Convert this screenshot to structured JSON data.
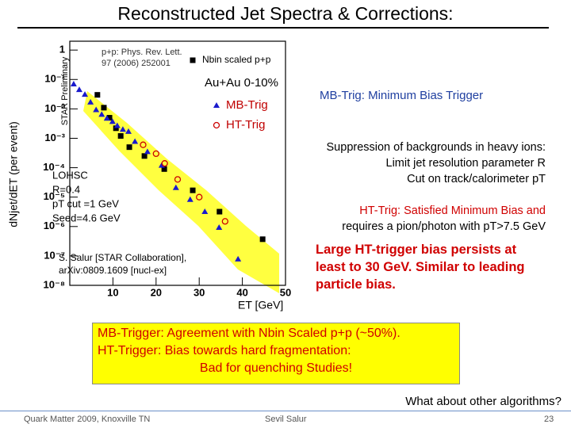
{
  "title": "Reconstructed Jet Spectra & Corrections:",
  "chart_data": {
    "type": "scatter",
    "y_label": "dNjet/dET (per event)",
    "x_label": "ET [GeV]",
    "log_y": true,
    "xlim": [
      0,
      50
    ],
    "xticks": [
      10,
      20,
      30,
      40,
      50
    ],
    "ylim": [
      1e-08,
      2
    ],
    "yticks": [
      {
        "value": 1,
        "label": "1"
      },
      {
        "value": 0.1,
        "label": "10⁻¹"
      },
      {
        "value": 0.01,
        "label": "10⁻²"
      },
      {
        "value": 0.001,
        "label": "10⁻³"
      },
      {
        "value": 0.0001,
        "label": "10⁻⁴"
      },
      {
        "value": 1e-05,
        "label": "10⁻⁵"
      },
      {
        "value": 1e-06,
        "label": "10⁻⁶"
      },
      {
        "value": 1e-07,
        "label": "10⁻⁷"
      },
      {
        "value": 1e-08,
        "label": "10⁻⁸"
      }
    ],
    "annotations": {
      "preliminary": "STAR Preliminary",
      "reference": [
        "p+p: Phys. Rev. Lett.",
        "97 (2006) 252001"
      ],
      "system": "Au+Au 0-10%",
      "algorithm": [
        "LOHSC",
        "R=0.4",
        "pT cut =1 GeV",
        "Seed=4.6 GeV"
      ],
      "citation": [
        "S. Salur [STAR Collaboration],",
        "arXiv:0809.1609 [nucl-ex]"
      ]
    },
    "series": [
      {
        "name": "Nbin scaled p+p",
        "color": "#000000",
        "marker": "square",
        "x": [
          6.4,
          7.9,
          9.2,
          10.7,
          11.8,
          13.8,
          17.3,
          21.9,
          28.5,
          34.7,
          44.7
        ],
        "values": [
          0.03,
          0.011,
          0.005,
          0.0022,
          0.0012,
          0.0005,
          0.00025,
          9e-05,
          1.7e-05,
          3.2e-06,
          3.7e-07
        ]
      },
      {
        "name": "MB-Trig",
        "color": "#1a1acc",
        "marker": "triangle",
        "x": [
          0.9,
          2.2,
          3.5,
          4.8,
          6.1,
          7.4,
          8.6,
          9.9,
          11.0,
          12.3,
          13.6,
          15.1,
          18.0,
          21.3,
          24.6,
          27.9,
          31.3,
          34.6,
          39.0
        ],
        "values": [
          0.07,
          0.045,
          0.031,
          0.017,
          0.0093,
          0.0065,
          0.0048,
          0.0037,
          0.0027,
          0.002,
          0.0017,
          0.00078,
          0.00035,
          0.00012,
          2.1e-05,
          8.3e-06,
          3.2e-06,
          9.3e-07,
          7.8e-08
        ]
      },
      {
        "name": "HT-Trig",
        "color": "#cc0000",
        "marker": "circle",
        "x": [
          17,
          20,
          22,
          25,
          30,
          36
        ],
        "values": [
          0.0006,
          0.0003,
          0.00014,
          4e-05,
          1e-05,
          1.5e-06
        ]
      }
    ]
  },
  "notes": {
    "mb_trig": "MB-Trig: Minimum Bias Trigger",
    "suppression": [
      "Suppression of backgrounds in heavy ions:",
      "Limit jet resolution parameter R",
      "Cut on track/calorimeter pT"
    ],
    "ht_trig": [
      "HT-Trig: Satisfied Minimum Bias and",
      "requires a pion/photon with pT>7.5 GeV"
    ],
    "bias": [
      "Large HT-trigger bias persists  at",
      "least to 30 GeV. Similar to leading",
      "particle bias."
    ]
  },
  "summary": [
    "MB-Trigger: Agreement with Nbin Scaled p+p (~50%).",
    "HT-Trigger: Bias towards hard fragmentation:",
    "Bad for quenching Studies!"
  ],
  "question": "What about other algorithms?",
  "footer": {
    "left": "Quark Matter 2009, Knoxville TN",
    "center": "Sevil Salur",
    "page": "23"
  }
}
